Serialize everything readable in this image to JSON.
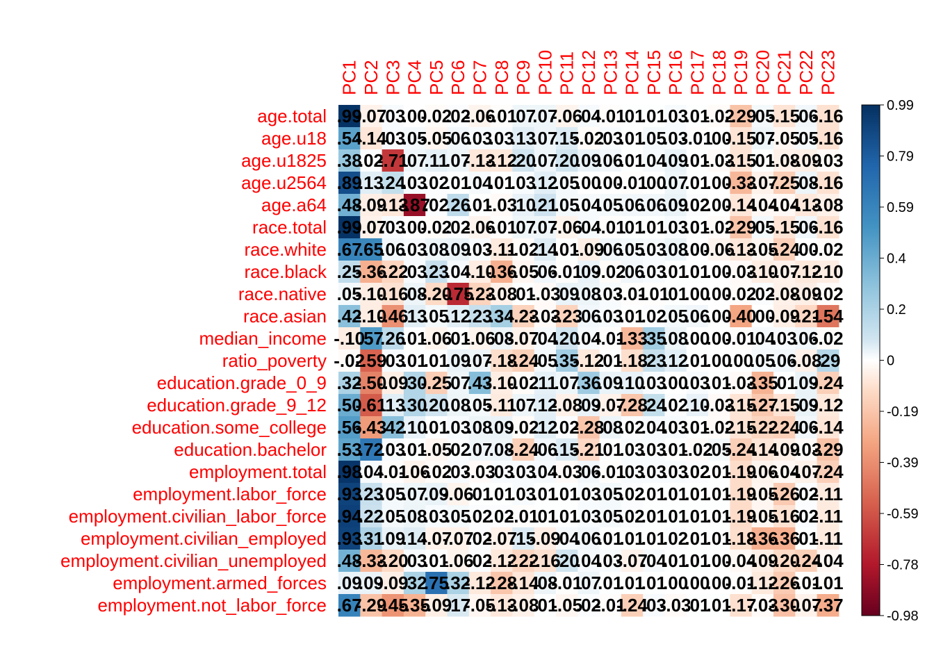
{
  "chart_data": {
    "type": "heatmap",
    "columns": [
      "PC1",
      "PC2",
      "PC3",
      "PC4",
      "PC5",
      "PC6",
      "PC7",
      "PC8",
      "PC9",
      "PC10",
      "PC11",
      "PC12",
      "PC13",
      "PC14",
      "PC15",
      "PC16",
      "PC17",
      "PC18",
      "PC19",
      "PC20",
      "PC21",
      "PC22",
      "PC23"
    ],
    "rows": [
      "age.total",
      "age.u18",
      "age.u1825",
      "age.u2564",
      "age.a64",
      "race.total",
      "race.white",
      "race.black",
      "race.native",
      "race.asian",
      "median_income",
      "ratio_poverty",
      "education.grade_0_9",
      "education.grade_9_12",
      "education.some_college",
      "education.bachelor",
      "employment.total",
      "employment.labor_force",
      "employment.civilian_labor_force",
      "employment.civilian_employed",
      "employment.civilian_unemployed",
      "employment.armed_forces",
      "employment.not_labor_force"
    ],
    "values": [
      [
        0.99,
        -0.07,
        0.03,
        0.0,
        -0.02,
        0.02,
        -0.06,
        -0.01,
        0.07,
        0.07,
        -0.06,
        0.04,
        -0.01,
        0.01,
        0.01,
        0.03,
        0.01,
        -0.02,
        -0.29,
        0.05,
        -0.15,
        0.06,
        -0.16
      ],
      [
        0.54,
        -0.14,
        0.03,
        0.05,
        -0.05,
        0.06,
        0.03,
        0.03,
        0.13,
        0.07,
        0.15,
        -0.02,
        0.03,
        0.01,
        0.05,
        0.03,
        -0.01,
        0.0,
        -0.15,
        0.07,
        -0.05,
        0.05,
        -0.16
      ],
      [
        0.38,
        0.02,
        -0.71,
        0.07,
        0.11,
        0.07,
        -0.13,
        -0.12,
        0.2,
        0.07,
        0.2,
        0.09,
        0.06,
        0.01,
        0.04,
        0.09,
        0.01,
        -0.03,
        -0.15,
        0.01,
        -0.08,
        -0.09,
        -0.03
      ],
      [
        0.89,
        0.13,
        0.24,
        0.03,
        0.02,
        0.01,
        0.04,
        0.01,
        0.03,
        0.12,
        0.05,
        0.0,
        0.0,
        -0.01,
        0.0,
        0.07,
        0.01,
        0.0,
        -0.33,
        -0.07,
        -0.25,
        0.08,
        -0.16
      ],
      [
        0.48,
        -0.09,
        -0.13,
        -0.87,
        0.02,
        0.26,
        0.01,
        -0.03,
        0.1,
        0.21,
        0.05,
        0.04,
        0.05,
        0.06,
        0.06,
        0.09,
        0.02,
        0.0,
        -0.14,
        -0.04,
        -0.04,
        -0.13,
        -0.08
      ],
      [
        0.99,
        -0.07,
        0.03,
        0.0,
        -0.02,
        0.02,
        -0.06,
        -0.01,
        0.07,
        0.07,
        -0.06,
        0.04,
        -0.01,
        0.01,
        0.01,
        0.03,
        0.01,
        -0.02,
        -0.29,
        0.05,
        -0.15,
        0.06,
        -0.16
      ],
      [
        0.67,
        0.65,
        0.06,
        0.03,
        0.08,
        0.09,
        0.03,
        -0.11,
        -0.02,
        0.14,
        0.01,
        -0.09,
        0.06,
        0.05,
        0.03,
        0.08,
        0.0,
        -0.06,
        -0.13,
        -0.05,
        -0.24,
        0.0,
        -0.02
      ],
      [
        0.25,
        -0.36,
        -0.22,
        0.03,
        0.23,
        0.04,
        -0.1,
        -0.36,
        -0.05,
        0.06,
        -0.01,
        0.09,
        -0.02,
        0.06,
        0.03,
        0.01,
        0.01,
        0.0,
        -0.03,
        -0.1,
        -0.07,
        -0.12,
        -0.1
      ],
      [
        0.05,
        -0.1,
        -0.16,
        0.08,
        -0.2,
        -0.75,
        -0.23,
        -0.08,
        0.01,
        -0.03,
        0.09,
        0.08,
        0.03,
        -0.01,
        -0.01,
        0.01,
        0.0,
        0.0,
        -0.02,
        0.02,
        -0.08,
        -0.09,
        -0.02
      ],
      [
        0.42,
        -0.1,
        -0.46,
        0.13,
        0.05,
        0.12,
        0.23,
        0.34,
        -0.23,
        -0.03,
        -0.23,
        0.06,
        0.03,
        0.01,
        0.02,
        0.05,
        0.06,
        0.0,
        -0.4,
        0.0,
        -0.09,
        -0.21,
        -0.54
      ],
      [
        -0.1,
        0.57,
        0.26,
        0.01,
        -0.06,
        0.01,
        -0.06,
        0.08,
        -0.07,
        0.04,
        0.2,
        0.04,
        -0.01,
        -0.33,
        0.35,
        0.08,
        0.0,
        0.0,
        -0.01,
        0.04,
        0.03,
        0.06,
        -0.02
      ],
      [
        -0.02,
        -0.59,
        0.03,
        0.01,
        0.01,
        0.09,
        0.07,
        -0.18,
        -0.24,
        0.05,
        0.35,
        -0.12,
        0.01,
        -0.18,
        0.23,
        0.12,
        0.01,
        0.0,
        0.0,
        0.05,
        0.06,
        -0.08,
        0.29
      ],
      [
        0.32,
        -0.5,
        -0.09,
        0.3,
        -0.25,
        0.07,
        0.43,
        -0.1,
        -0.02,
        0.11,
        0.07,
        0.36,
        0.09,
        0.1,
        0.03,
        0.0,
        0.03,
        0.01,
        -0.03,
        -0.35,
        0.01,
        0.09,
        -0.24
      ],
      [
        0.5,
        -0.61,
        0.13,
        0.3,
        0.2,
        0.08,
        0.05,
        -0.11,
        0.07,
        0.12,
        -0.08,
        0.09,
        -0.07,
        -0.28,
        0.24,
        0.02,
        0.1,
        -0.03,
        -0.15,
        -0.27,
        -0.15,
        0.09,
        -0.12
      ],
      [
        0.56,
        -0.43,
        0.42,
        0.1,
        0.01,
        0.03,
        0.08,
        0.09,
        -0.02,
        0.12,
        0.02,
        -0.28,
        0.08,
        0.02,
        0.04,
        0.03,
        0.01,
        -0.02,
        -0.15,
        -0.22,
        -0.24,
        0.06,
        -0.14
      ],
      [
        0.53,
        0.72,
        0.03,
        0.01,
        -0.05,
        0.02,
        0.07,
        0.08,
        -0.24,
        0.06,
        0.15,
        -0.21,
        0.01,
        0.03,
        0.03,
        0.01,
        -0.02,
        0.05,
        -0.24,
        -0.14,
        -0.09,
        -0.03,
        -0.29
      ],
      [
        0.98,
        0.04,
        -0.01,
        -0.06,
        -0.02,
        0.03,
        -0.03,
        0.03,
        0.03,
        0.04,
        -0.03,
        0.06,
        -0.01,
        0.03,
        0.03,
        0.03,
        0.02,
        0.01,
        -0.19,
        -0.06,
        -0.04,
        -0.07,
        -0.24
      ],
      [
        0.93,
        0.23,
        0.05,
        0.07,
        0.09,
        -0.06,
        0.01,
        0.01,
        0.03,
        0.01,
        0.01,
        0.03,
        0.05,
        0.02,
        0.01,
        0.01,
        0.01,
        0.01,
        -0.19,
        -0.05,
        -0.26,
        0.02,
        -0.11
      ],
      [
        0.94,
        0.22,
        0.05,
        0.08,
        0.03,
        0.05,
        0.02,
        0.02,
        -0.01,
        0.01,
        0.01,
        0.03,
        0.05,
        0.02,
        0.01,
        0.01,
        0.01,
        0.01,
        -0.19,
        -0.05,
        -0.16,
        0.02,
        -0.11
      ],
      [
        0.93,
        0.31,
        0.09,
        0.14,
        -0.07,
        -0.07,
        0.02,
        -0.07,
        0.15,
        -0.09,
        0.04,
        0.06,
        0.01,
        0.01,
        0.01,
        0.02,
        0.01,
        0.01,
        -0.18,
        -0.36,
        -0.36,
        0.01,
        -0.11
      ],
      [
        0.48,
        -0.33,
        -0.2,
        0.03,
        0.01,
        -0.06,
        0.02,
        -0.12,
        -0.22,
        -0.16,
        0.2,
        0.04,
        0.03,
        -0.07,
        0.04,
        0.01,
        0.01,
        0.0,
        -0.04,
        -0.09,
        -0.2,
        -0.24,
        -0.04
      ],
      [
        0.09,
        0.09,
        -0.09,
        0.32,
        0.75,
        0.32,
        -0.12,
        -0.28,
        -0.14,
        0.08,
        -0.01,
        0.07,
        0.01,
        0.01,
        0.01,
        0.0,
        0.0,
        0.0,
        -0.01,
        -0.12,
        -0.26,
        -0.01,
        -0.01
      ],
      [
        0.67,
        -0.29,
        -0.45,
        -0.35,
        -0.09,
        0.17,
        -0.05,
        -0.13,
        -0.08,
        0.01,
        -0.05,
        0.02,
        -0.01,
        -0.24,
        0.03,
        -0.03,
        0.01,
        0.01,
        -0.17,
        -0.03,
        -0.3,
        -0.07,
        -0.37
      ]
    ],
    "legend": {
      "ticks": [
        "0.99",
        "0.79",
        "0.59",
        "0.4",
        "0.2",
        "0",
        "-0.19",
        "-0.39",
        "-0.59",
        "-0.78",
        "-0.98"
      ],
      "range": [
        -0.98,
        0.99
      ],
      "placement": "right"
    },
    "colors": {
      "negative_end": "#67001f",
      "mid_negative": "#d6604d",
      "light_negative": "#fddbc7",
      "zero": "#ffffff",
      "light_positive": "#d1e5f0",
      "mid_positive": "#4393c3",
      "positive_end": "#053061",
      "label": "#ff0000"
    }
  }
}
